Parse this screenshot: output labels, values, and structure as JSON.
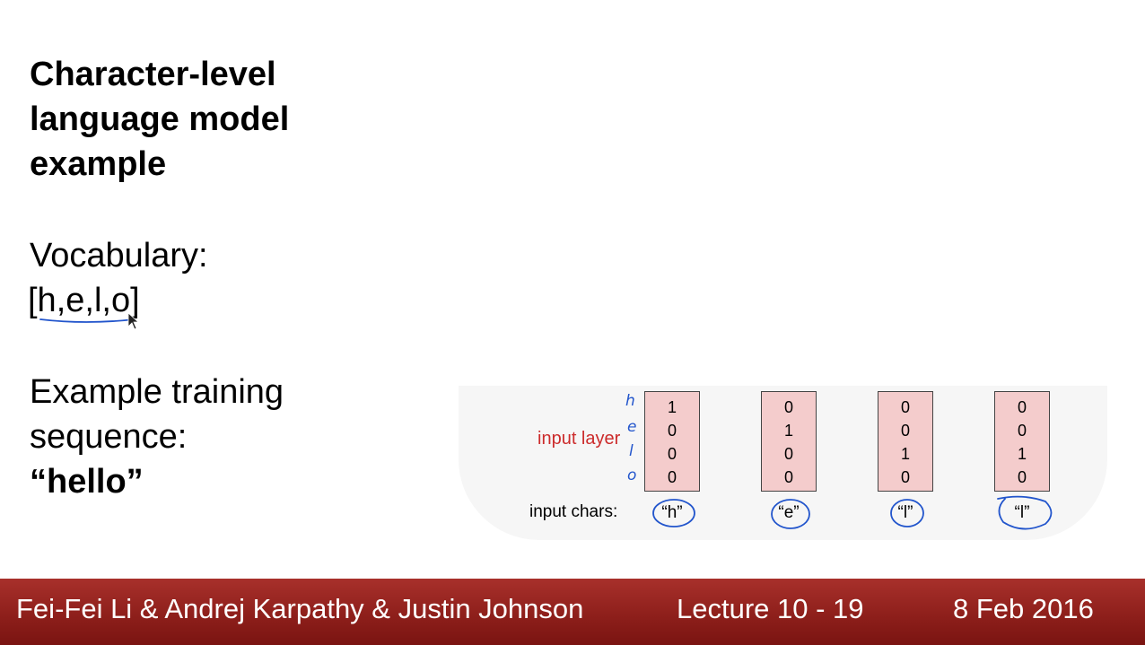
{
  "slide": {
    "title_lines": [
      "Character-level",
      "language model",
      "example"
    ],
    "vocab_label": "Vocabulary:",
    "vocab_list": "[h,e,l,o]",
    "sequence_label_lines": [
      "Example training",
      "sequence:"
    ],
    "sequence_word": "“hello”"
  },
  "diagram": {
    "input_layer_label": "input layer",
    "input_chars_label": "input chars:",
    "vectors": [
      {
        "char": "“h”",
        "values": [
          "1",
          "0",
          "0",
          "0"
        ]
      },
      {
        "char": "“e”",
        "values": [
          "0",
          "1",
          "0",
          "0"
        ]
      },
      {
        "char": "“l”",
        "values": [
          "0",
          "0",
          "1",
          "0"
        ]
      },
      {
        "char": "“l”",
        "values": [
          "0",
          "0",
          "1",
          "0"
        ]
      }
    ],
    "handwritten_row_labels": [
      "h",
      "e",
      "l",
      "o"
    ]
  },
  "footer": {
    "authors": "Fei-Fei Li & Andrej Karpathy & Justin Johnson",
    "lecture": "Lecture 10 -  19",
    "date": "8 Feb 2016"
  },
  "colors": {
    "footer_bg": "#8c1e1a",
    "vector_fill": "#f4cccc",
    "layer_label": "#cc2b2b",
    "annotation_ink": "#2255cc"
  }
}
